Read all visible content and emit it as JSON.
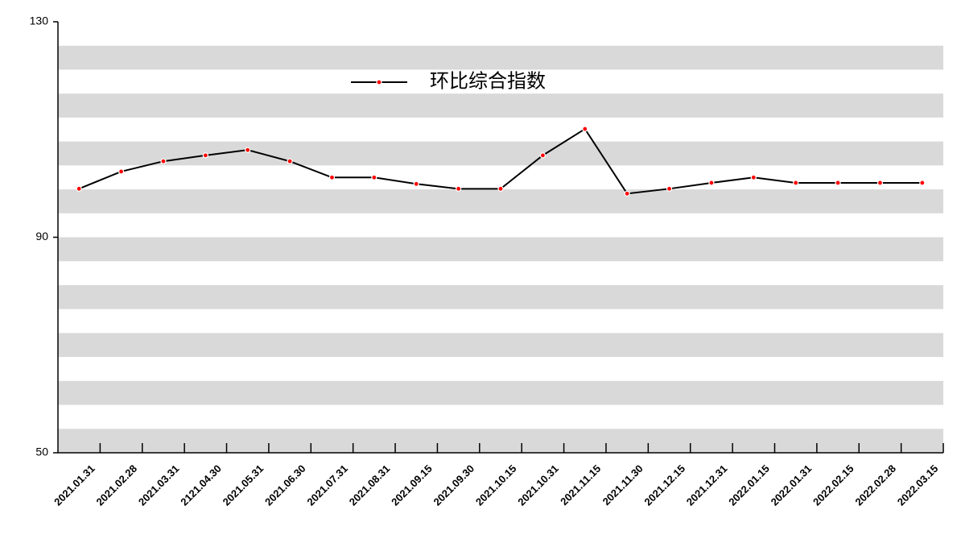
{
  "chart_data": {
    "type": "line",
    "categories": [
      "2021.01.31",
      "2021.02.28",
      "2021.03.31",
      "2121.04.30",
      "2021.05.31",
      "2021.06.30",
      "2021.07.31",
      "2021.08.31",
      "2021.09.15",
      "2021.09.30",
      "2021.10.15",
      "2021.10.31",
      "2021.11.15",
      "2021.11.30",
      "2021.12.15",
      "2021.12.31",
      "2022.01.15",
      "2022.01.31",
      "2022.02.15",
      "2022.02.28",
      "2022.03.15"
    ],
    "series": [
      {
        "name": "环比综合指数",
        "color": "#000000",
        "marker_color": "#ff0000",
        "values": [
          99,
          102.2,
          104.1,
          105.2,
          106.2,
          104.1,
          101.1,
          101.1,
          99.9,
          99,
          99,
          105.2,
          110.1,
          98.1,
          99,
          100.1,
          101.1,
          100.1,
          100.1,
          100.1,
          100.1
        ]
      }
    ],
    "ylim": [
      50,
      130
    ],
    "yticks": [
      50,
      90,
      130
    ],
    "legend": "top-center"
  }
}
